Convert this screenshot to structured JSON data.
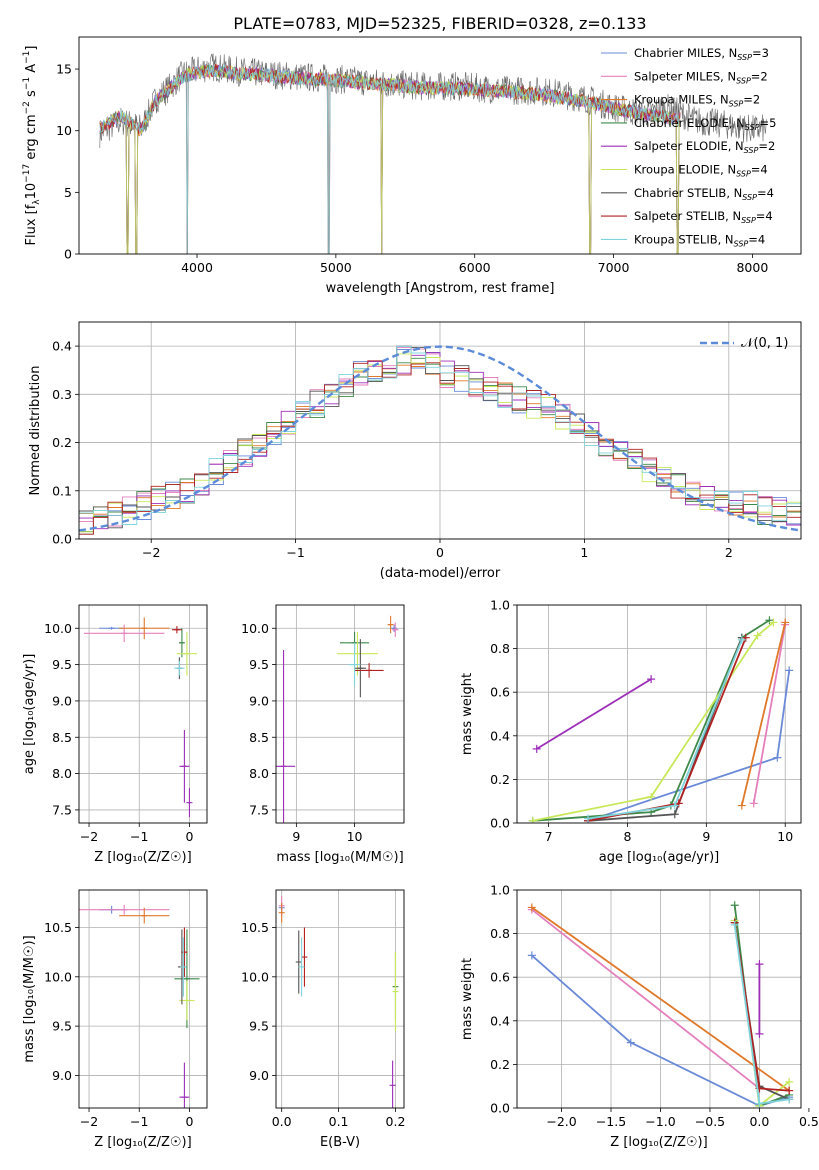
{
  "figure_title": "PLATE=0783, MJD=52325, FIBERID=0328, z=0.133",
  "series": [
    {
      "name": "Chabrier MILES, N$_{SSP}$=3",
      "label_main": "Chabrier MILES, N",
      "label_sub": "SSP",
      "label_tail": "=3",
      "color": "#6a8ad8"
    },
    {
      "name": "Salpeter MILES, N$_{SSP}$=2",
      "label_main": "Salpeter MILES, N",
      "label_sub": "SSP",
      "label_tail": "=2",
      "color": "#e47fbc"
    },
    {
      "name": "Kroupa MILES, N$_{SSP}$=2",
      "label_main": "Kroupa MILES, N",
      "label_sub": "SSP",
      "label_tail": "=2",
      "color": "#e0782a"
    },
    {
      "name": "Chabrier ELODIE, N$_{SSP}$=5",
      "label_main": "Chabrier ELODIE, N",
      "label_sub": "SSP",
      "label_tail": "=5",
      "color": "#3f8a4a"
    },
    {
      "name": "Salpeter ELODIE, N$_{SSP}$=2",
      "label_main": "Salpeter ELODIE, N",
      "label_sub": "SSP",
      "label_tail": "=2",
      "color": "#9d2eb8"
    },
    {
      "name": "Kroupa ELODIE, N$_{SSP}$=4",
      "label_main": "Kroupa ELODIE, N",
      "label_sub": "SSP",
      "label_tail": "=4",
      "color": "#c8e85a"
    },
    {
      "name": "Chabrier STELIB, N$_{SSP}$=4",
      "label_main": "Chabrier STELIB, N",
      "label_sub": "SSP",
      "label_tail": "=4",
      "color": "#555555"
    },
    {
      "name": "Salpeter STELIB, N$_{SSP}$=4",
      "label_main": "Salpeter STELIB, N",
      "label_sub": "SSP",
      "label_tail": "=4",
      "color": "#b22222"
    },
    {
      "name": "Kroupa STELIB, N$_{SSP}$=4",
      "label_main": "Kroupa STELIB, N",
      "label_sub": "SSP",
      "label_tail": "=4",
      "color": "#7fd4dc"
    }
  ],
  "chart_data": [
    {
      "id": "spectrum",
      "type": "line",
      "xlabel": "wavelength [Angstrom, rest frame]",
      "ylabel_main": "Flux [f",
      "ylabel_sub": "λ",
      "ylabel_tail": "10",
      "ylabel_sup1": "−17",
      "ylabel_mid": " erg cm",
      "ylabel_sup2": "−2",
      "ylabel_mid2": " s",
      "ylabel_sup3": "−1",
      "ylabel_end": " A",
      "ylabel_sup4": "−1",
      "ylabel_close": "]",
      "xlim": [
        3150,
        8350
      ],
      "ylim": [
        0,
        17.6
      ],
      "xticks": [
        4000,
        5000,
        6000,
        7000,
        8000
      ],
      "yticks": [
        0,
        5,
        10,
        15
      ],
      "data_x_range": [
        3300,
        8100
      ],
      "data_curve": {
        "x": [
          3300,
          3450,
          3600,
          3700,
          3800,
          3900,
          4000,
          4100,
          4200,
          4300,
          4500,
          4700,
          5000,
          5300,
          5600,
          5900,
          6200,
          6500,
          6800,
          7000,
          7200,
          7400,
          7600,
          7800,
          8000,
          8100
        ],
        "y": [
          9.8,
          10.8,
          10.2,
          12.5,
          13.5,
          14.6,
          14.9,
          15.2,
          15.0,
          14.8,
          14.6,
          14.4,
          14.2,
          13.9,
          13.6,
          13.6,
          13.3,
          13.2,
          12.6,
          11.9,
          11.4,
          11.8,
          10.8,
          10.5,
          10.1,
          10.2
        ]
      },
      "model_curve": {
        "x": [
          3300,
          3450,
          3600,
          3700,
          3800,
          3900,
          4000,
          4100,
          4200,
          4300,
          4500,
          4700,
          5000,
          5300,
          5600,
          5900,
          6200,
          6500,
          6800,
          7000,
          7200,
          7400
        ],
        "y": [
          10.2,
          11.2,
          10.0,
          12.4,
          13.4,
          14.4,
          14.7,
          14.9,
          14.8,
          14.6,
          14.5,
          14.3,
          14.1,
          13.8,
          13.5,
          13.4,
          13.2,
          12.9,
          12.4,
          11.8,
          11.4,
          11.0
        ]
      },
      "dips_to_zero": [
        3500,
        3560,
        3930,
        4950,
        5330,
        6830,
        7460
      ],
      "grid": false,
      "legend": "upper-right"
    },
    {
      "id": "residuals",
      "type": "step-histogram",
      "xlabel": "(data-model)/error",
      "ylabel": "Normed distribution",
      "xlim": [
        -2.5,
        2.5
      ],
      "ylim": [
        0,
        0.45
      ],
      "xticks": [
        -2,
        -1,
        0,
        1,
        2
      ],
      "yticks": [
        0.0,
        0.1,
        0.2,
        0.3,
        0.4
      ],
      "xtick_labels": [
        "−2",
        "−1",
        "0",
        "1",
        "2"
      ],
      "ytick_labels": [
        "0.0",
        "0.1",
        "0.2",
        "0.3",
        "0.4"
      ],
      "bins": 50,
      "envelope": [
        0.03,
        0.04,
        0.05,
        0.06,
        0.07,
        0.08,
        0.09,
        0.1,
        0.12,
        0.14,
        0.16,
        0.18,
        0.2,
        0.22,
        0.24,
        0.26,
        0.28,
        0.3,
        0.32,
        0.34,
        0.35,
        0.36,
        0.37,
        0.37,
        0.36,
        0.34,
        0.33,
        0.32,
        0.31,
        0.3,
        0.29,
        0.28,
        0.27,
        0.25,
        0.24,
        0.22,
        0.2,
        0.18,
        0.16,
        0.14,
        0.12,
        0.11,
        0.1,
        0.09,
        0.08,
        0.07,
        0.07,
        0.06,
        0.06,
        0.05
      ],
      "gaussian_label": "𝒩(0, 1)",
      "gaussian_color": "#5b8bd9",
      "grid": true,
      "legend": "upper-right"
    },
    {
      "id": "age_vs_Z",
      "type": "errorbar",
      "xlabel": "Z [log₁₀(Z/Z☉)]",
      "ylabel": "age  [log₁₀(age/yr)]",
      "xlim": [
        -2.2,
        0.35
      ],
      "ylim": [
        7.32,
        10.32
      ],
      "xticks": [
        -2,
        -1,
        0
      ],
      "yticks": [
        7.5,
        8.0,
        8.5,
        9.0,
        9.5,
        10.0
      ],
      "xtick_labels": [
        "−2",
        "−1",
        "0"
      ],
      "ytick_labels": [
        "7.5",
        "8.0",
        "8.5",
        "9.0",
        "9.5",
        "10.0"
      ],
      "points": [
        {
          "s": 0,
          "x": -1.55,
          "xerr": 0.25,
          "y": 10.0,
          "yerr": 0.02
        },
        {
          "s": 1,
          "x": -1.3,
          "xerr": 0.8,
          "y": 9.93,
          "yerr": 0.12
        },
        {
          "s": 2,
          "x": -0.9,
          "xerr": 0.5,
          "y": 10.0,
          "yerr": 0.15
        },
        {
          "s": 3,
          "x": -0.15,
          "xerr": 0.05,
          "y": 9.8,
          "yerr": 0.2
        },
        {
          "s": 4,
          "x": -0.1,
          "xerr": 0.1,
          "y": 8.1,
          "yerr": 0.5
        },
        {
          "s": 4,
          "x": 0.0,
          "xerr": 0.02,
          "y": 7.6,
          "yerr": 0.2
        },
        {
          "s": 5,
          "x": -0.05,
          "xerr": 0.2,
          "y": 9.65,
          "yerr": 0.3
        },
        {
          "s": 6,
          "x": -0.2,
          "xerr": 0.05,
          "y": 9.45,
          "yerr": 0.15
        },
        {
          "s": 7,
          "x": -0.25,
          "xerr": 0.1,
          "y": 9.98,
          "yerr": 0.05
        },
        {
          "s": 8,
          "x": -0.2,
          "xerr": 0.1,
          "y": 9.45,
          "yerr": 0.1
        }
      ],
      "grid": true
    },
    {
      "id": "age_vs_mass",
      "type": "errorbar",
      "xlabel": "mass [log₁₀(M/M☉)]",
      "ylabel": "",
      "xlim": [
        8.65,
        10.85
      ],
      "ylim": [
        7.32,
        10.32
      ],
      "xticks": [
        9,
        10
      ],
      "yticks": [
        7.5,
        8.0,
        8.5,
        9.0,
        9.5,
        10.0
      ],
      "xtick_labels": [
        "9",
        "10"
      ],
      "ytick_labels": [
        "7.5",
        "8.0",
        "8.5",
        "9.0",
        "9.5",
        "10.0"
      ],
      "points": [
        {
          "s": 0,
          "x": 10.68,
          "xerr": 0.03,
          "y": 10.0,
          "yerr": 0.05
        },
        {
          "s": 1,
          "x": 10.7,
          "xerr": 0.05,
          "y": 9.98,
          "yerr": 0.1
        },
        {
          "s": 2,
          "x": 10.62,
          "xerr": 0.04,
          "y": 10.05,
          "yerr": 0.12
        },
        {
          "s": 3,
          "x": 10.0,
          "xerr": 0.25,
          "y": 9.8,
          "yerr": 0.15
        },
        {
          "s": 4,
          "x": 8.78,
          "xerr": 0.2,
          "y": 8.1,
          "yerr": 1.6
        },
        {
          "s": 5,
          "x": 10.05,
          "xerr": 0.35,
          "y": 9.65,
          "yerr": 0.3
        },
        {
          "s": 6,
          "x": 10.1,
          "xerr": 0.1,
          "y": 9.45,
          "yerr": 0.4
        },
        {
          "s": 7,
          "x": 10.25,
          "xerr": 0.25,
          "y": 9.42,
          "yerr": 0.1
        },
        {
          "s": 8,
          "x": 10.0,
          "xerr": 0.1,
          "y": 9.5,
          "yerr": 0.3
        }
      ],
      "grid": true
    },
    {
      "id": "weight_vs_age",
      "type": "line",
      "xlabel": "age  [log₁₀(age/yr)]",
      "ylabel": "mass weight",
      "xlim": [
        6.6,
        10.2
      ],
      "ylim": [
        0,
        1.0
      ],
      "xticks": [
        7,
        8,
        9,
        10
      ],
      "yticks": [
        0.0,
        0.2,
        0.4,
        0.6,
        0.8,
        1.0
      ],
      "xtick_labels": [
        "7",
        "8",
        "9",
        "10"
      ],
      "ytick_labels": [
        "0.0",
        "0.2",
        "0.4",
        "0.6",
        "0.8",
        "1.0"
      ],
      "series": [
        {
          "s": 0,
          "x": [
            7.5,
            9.9,
            10.05
          ],
          "y": [
            0.01,
            0.3,
            0.7
          ]
        },
        {
          "s": 1,
          "x": [
            9.6,
            10.0
          ],
          "y": [
            0.09,
            0.91
          ]
        },
        {
          "s": 2,
          "x": [
            9.45,
            10.0
          ],
          "y": [
            0.08,
            0.92
          ]
        },
        {
          "s": 3,
          "x": [
            6.8,
            8.3,
            8.55,
            9.45,
            9.8
          ],
          "y": [
            0.01,
            0.05,
            0.08,
            0.85,
            0.93
          ]
        },
        {
          "s": 4,
          "x": [
            6.85,
            8.3
          ],
          "y": [
            0.34,
            0.66
          ]
        },
        {
          "s": 5,
          "x": [
            6.8,
            8.3,
            9.65,
            9.85
          ],
          "y": [
            0.01,
            0.12,
            0.86,
            0.92
          ]
        },
        {
          "s": 6,
          "x": [
            7.5,
            8.6,
            9.45
          ],
          "y": [
            0.01,
            0.04,
            0.85
          ]
        },
        {
          "s": 7,
          "x": [
            7.5,
            8.65,
            9.5
          ],
          "y": [
            0.01,
            0.09,
            0.85
          ]
        },
        {
          "s": 8,
          "x": [
            7.5,
            8.6,
            9.45
          ],
          "y": [
            0.02,
            0.08,
            0.84
          ]
        }
      ],
      "grid": true
    },
    {
      "id": "mass_vs_Z",
      "type": "errorbar",
      "xlabel": "Z [log₁₀(Z/Z☉)]",
      "ylabel": "mass [log₁₀(M/M☉)]",
      "xlim": [
        -2.2,
        0.35
      ],
      "ylim": [
        8.67,
        10.88
      ],
      "xticks": [
        -2,
        -1,
        0
      ],
      "yticks": [
        9.0,
        9.5,
        10.0,
        10.5
      ],
      "xtick_labels": [
        "−2",
        "−1",
        "0"
      ],
      "ytick_labels": [
        "9.0",
        "9.5",
        "10.0",
        "10.5"
      ],
      "points": [
        {
          "s": 0,
          "x": -1.55,
          "xerr": 0.25,
          "y": 10.68,
          "yerr": 0.04
        },
        {
          "s": 1,
          "x": -1.3,
          "xerr": 0.9,
          "y": 10.68,
          "yerr": 0.05
        },
        {
          "s": 2,
          "x": -0.9,
          "xerr": 0.5,
          "y": 10.62,
          "yerr": 0.08
        },
        {
          "s": 3,
          "x": -0.05,
          "xerr": 0.25,
          "y": 9.98,
          "yerr": 0.5
        },
        {
          "s": 4,
          "x": -0.1,
          "xerr": 0.1,
          "y": 8.78,
          "yerr": 0.35
        },
        {
          "s": 5,
          "x": -0.05,
          "xerr": 0.15,
          "y": 9.76,
          "yerr": 0.2
        },
        {
          "s": 6,
          "x": -0.15,
          "xerr": 0.08,
          "y": 10.1,
          "yerr": 0.38
        },
        {
          "s": 7,
          "x": -0.1,
          "xerr": 0.05,
          "y": 10.25,
          "yerr": 0.25
        },
        {
          "s": 8,
          "x": -0.12,
          "xerr": 0.05,
          "y": 10.1,
          "yerr": 0.3
        }
      ],
      "grid": true
    },
    {
      "id": "mass_vs_EBV",
      "type": "errorbar",
      "xlabel": "E(B-V)",
      "ylabel": "",
      "xlim": [
        -0.01,
        0.215
      ],
      "ylim": [
        8.67,
        10.88
      ],
      "xticks": [
        0.0,
        0.1,
        0.2
      ],
      "yticks": [
        9.0,
        9.5,
        10.0,
        10.5
      ],
      "xtick_labels": [
        "0.0",
        "0.1",
        "0.2"
      ],
      "ytick_labels": [
        "9.0",
        "9.5",
        "10.0",
        "10.5"
      ],
      "points": [
        {
          "s": 0,
          "x": 0.0,
          "xerr": 0.0,
          "y": 10.7,
          "yerr": 0.05
        },
        {
          "s": 1,
          "x": 0.0,
          "xerr": 0.0,
          "y": 10.72,
          "yerr": 0.1
        },
        {
          "s": 2,
          "x": 0.0,
          "xerr": 0.0,
          "y": 10.65,
          "yerr": 0.1
        },
        {
          "s": 3,
          "x": 0.2,
          "xerr": 0.0,
          "y": 9.9,
          "yerr": 0.35
        },
        {
          "s": 4,
          "x": 0.195,
          "xerr": 0.0,
          "y": 8.9,
          "yerr": 0.25
        },
        {
          "s": 5,
          "x": 0.2,
          "xerr": 0.0,
          "y": 9.85,
          "yerr": 0.4
        },
        {
          "s": 6,
          "x": 0.03,
          "xerr": 0.0,
          "y": 10.15,
          "yerr": 0.32
        },
        {
          "s": 7,
          "x": 0.04,
          "xerr": 0.0,
          "y": 10.2,
          "yerr": 0.3
        },
        {
          "s": 8,
          "x": 0.035,
          "xerr": 0.0,
          "y": 10.1,
          "yerr": 0.3
        }
      ],
      "grid": true
    },
    {
      "id": "weight_vs_Z",
      "type": "line",
      "xlabel": "Z [log₁₀(Z/Z☉)]",
      "ylabel": "mass weight",
      "xlim": [
        -2.45,
        0.42
      ],
      "ylim": [
        0,
        1.0
      ],
      "xticks": [
        -2.0,
        -1.5,
        -1.0,
        -0.5,
        0.0,
        0.5
      ],
      "yticks": [
        0.0,
        0.2,
        0.4,
        0.6,
        0.8,
        1.0
      ],
      "xtick_labels": [
        "−2.0",
        "−1.5",
        "−1.0",
        "−0.5",
        "0.0",
        "0.5"
      ],
      "ytick_labels": [
        "0.0",
        "0.2",
        "0.4",
        "0.6",
        "0.8",
        "1.0"
      ],
      "series": [
        {
          "s": 0,
          "x": [
            -2.3,
            -1.3,
            0.0,
            0.3
          ],
          "y": [
            0.7,
            0.3,
            0.01,
            0.05
          ]
        },
        {
          "s": 1,
          "x": [
            -2.3,
            0.0
          ],
          "y": [
            0.91,
            0.09
          ]
        },
        {
          "s": 2,
          "x": [
            -2.3,
            0.3
          ],
          "y": [
            0.92,
            0.08
          ]
        },
        {
          "s": 3,
          "x": [
            -0.25,
            0.0,
            0.3
          ],
          "y": [
            0.93,
            0.01,
            0.06
          ]
        },
        {
          "s": 4,
          "x": [
            0.0,
            0.0
          ],
          "y": [
            0.34,
            0.66
          ]
        },
        {
          "s": 5,
          "x": [
            -0.25,
            0.0,
            0.3
          ],
          "y": [
            0.86,
            0.01,
            0.12
          ]
        },
        {
          "s": 6,
          "x": [
            -0.25,
            0.0,
            0.3
          ],
          "y": [
            0.85,
            0.1,
            0.04
          ]
        },
        {
          "s": 7,
          "x": [
            -0.25,
            0.0,
            0.3
          ],
          "y": [
            0.85,
            0.09,
            0.08
          ]
        },
        {
          "s": 8,
          "x": [
            -0.25,
            0.0,
            0.3
          ],
          "y": [
            0.84,
            0.02,
            0.04
          ]
        }
      ],
      "grid": true
    }
  ]
}
